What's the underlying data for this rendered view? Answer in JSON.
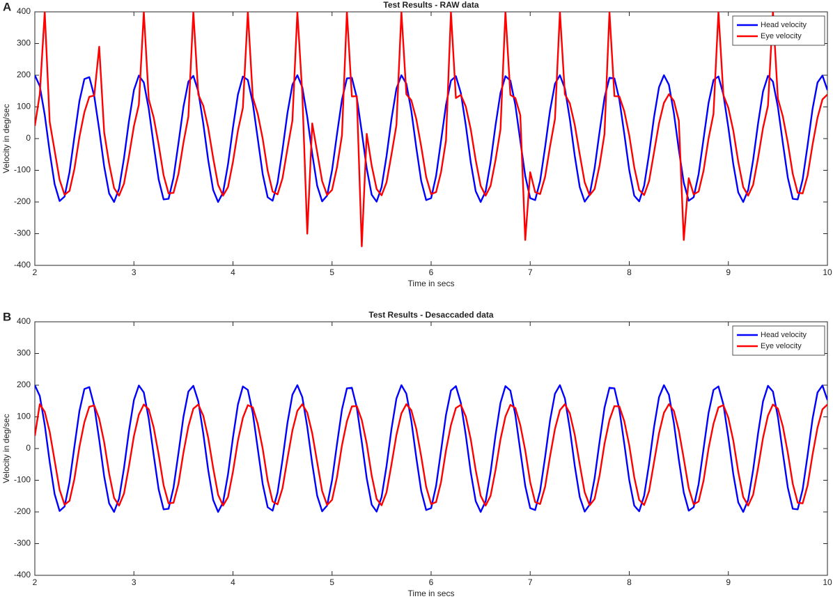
{
  "chart_data": [
    {
      "type": "line",
      "panel_label": "A",
      "title": "Test Results - RAW data",
      "xlabel": "Time in secs",
      "ylabel": "Velocity in deg/sec",
      "xlim": [
        2,
        10
      ],
      "ylim": [
        -400,
        400
      ],
      "xticks": [
        2,
        3,
        4,
        5,
        6,
        7,
        8,
        9,
        10
      ],
      "yticks": [
        -400,
        -300,
        -200,
        -100,
        0,
        100,
        200,
        300,
        400
      ],
      "legend": "upper right",
      "x": [
        2,
        2.05,
        2.1,
        2.15,
        2.2,
        2.25,
        2.3,
        2.35,
        2.4,
        2.45,
        2.5,
        2.55,
        2.6,
        2.65,
        2.7,
        2.75,
        2.8,
        2.85,
        2.9,
        2.95,
        3,
        3.05,
        3.1,
        3.15,
        3.2,
        3.25,
        3.3,
        3.35,
        3.4,
        3.45,
        3.5,
        3.55,
        3.6,
        3.65,
        3.7,
        3.75,
        3.8,
        3.85,
        3.9,
        3.95,
        4,
        4.05,
        4.1,
        4.15,
        4.2,
        4.25,
        4.3,
        4.35,
        4.4,
        4.45,
        4.5,
        4.55,
        4.6,
        4.65,
        4.7,
        4.75,
        4.8,
        4.85,
        4.9,
        4.95,
        5,
        5.05,
        5.1,
        5.15,
        5.2,
        5.25,
        5.3,
        5.35,
        5.4,
        5.45,
        5.5,
        5.55,
        5.6,
        5.65,
        5.7,
        5.75,
        5.8,
        5.85,
        5.9,
        5.95,
        6,
        6.05,
        6.1,
        6.15,
        6.2,
        6.25,
        6.3,
        6.35,
        6.4,
        6.45,
        6.5,
        6.55,
        6.6,
        6.65,
        6.7,
        6.75,
        6.8,
        6.85,
        6.9,
        6.95,
        7,
        7.05,
        7.1,
        7.15,
        7.2,
        7.25,
        7.3,
        7.35,
        7.4,
        7.45,
        7.5,
        7.55,
        7.6,
        7.65,
        7.7,
        7.75,
        7.8,
        7.85,
        7.9,
        7.95,
        8,
        8.05,
        8.1,
        8.15,
        8.2,
        8.25,
        8.3,
        8.35,
        8.4,
        8.45,
        8.5,
        8.55,
        8.6,
        8.65,
        8.7,
        8.75,
        8.8,
        8.85,
        8.9,
        8.95,
        9,
        9.05,
        9.1,
        9.15,
        9.2,
        9.25,
        9.3,
        9.35,
        9.4,
        9.45,
        9.5,
        9.55,
        9.6,
        9.65,
        9.7,
        9.75,
        9.8,
        9.85,
        9.9,
        9.95,
        10
      ],
      "series": [
        {
          "name": "Head velocity",
          "color": "#0000ff",
          "values": [
            200,
            166,
            75,
            -42,
            -144,
            -197,
            -183,
            -106,
            7,
            118,
            188,
            194,
            134,
            28,
            -88,
            -173,
            -200,
            -158,
            -62,
            55,
            153,
            199,
            177,
            94,
            -21,
            -129,
            -192,
            -190,
            -123,
            -14,
            100,
            180,
            198,
            149,
            48,
            -68,
            -162,
            -200,
            -170,
            -81,
            35,
            139,
            196,
            185,
            112,
            0,
            -112,
            -185,
            -196,
            -139,
            -35,
            81,
            170,
            200,
            162,
            68,
            -48,
            -149,
            -198,
            -180,
            -100,
            14,
            123,
            190,
            192,
            129,
            21,
            -94,
            -177,
            -199,
            -153,
            -55,
            62,
            158,
            200,
            173,
            88,
            -28,
            -134,
            -194,
            -188,
            -118,
            -7,
            106,
            183,
            197,
            144,
            42,
            -75,
            -166,
            -200,
            -166,
            -75,
            42,
            144,
            197,
            183,
            106,
            -7,
            -118,
            -188,
            -194,
            -134,
            -28,
            88,
            173,
            200,
            158,
            62,
            -55,
            -153,
            -199,
            -177,
            -94,
            21,
            129,
            192,
            190,
            123,
            14,
            -100,
            -180,
            -198,
            -149,
            -48,
            68,
            162,
            200,
            170,
            81,
            -35,
            -139,
            -196,
            -185,
            -112,
            0,
            112,
            185,
            196,
            139,
            35,
            -81,
            -170,
            -200,
            -162,
            -68,
            48,
            149,
            198,
            180,
            100,
            -14,
            -123,
            -190,
            -192,
            -129,
            -21,
            94,
            177,
            199,
            153
          ]
        },
        {
          "name": "Eye velocity",
          "color": "#ff0000",
          "values": [
            40,
            140,
            400,
            53,
            -38,
            -130,
            -177,
            -165,
            -95,
            5,
            83,
            132,
            136,
            290,
            20,
            -79,
            -156,
            -180,
            -142,
            -56,
            39,
            107,
            400,
            124,
            66,
            -19,
            -116,
            -173,
            -171,
            -111,
            -13,
            70,
            400,
            139,
            104,
            34,
            -61,
            -146,
            -180,
            -153,
            -73,
            25,
            97,
            400,
            130,
            78,
            0,
            -101,
            -167,
            -176,
            -125,
            -32,
            57,
            400,
            140,
            -300,
            48,
            -43,
            -134,
            -178,
            -162,
            -90,
            10,
            400,
            133,
            134,
            -340,
            15,
            -85,
            -159,
            -179,
            -138,
            -50,
            43,
            400,
            140,
            121,
            62,
            -25,
            -121,
            -175,
            -169,
            -106,
            -6,
            400,
            128,
            138,
            101,
            29,
            -68,
            -149,
            -180,
            -149,
            -68,
            29,
            400,
            138,
            128,
            74,
            -320,
            -106,
            -169,
            -175,
            -121,
            -25,
            62,
            400,
            140,
            111,
            43,
            -50,
            -138,
            -179,
            -159,
            -85,
            15,
            400,
            134,
            133,
            86,
            10,
            -90,
            -162,
            -178,
            -134,
            -43,
            48,
            113,
            140,
            119,
            57,
            -320,
            -125,
            -176,
            -167,
            -101,
            0,
            78,
            400,
            137,
            97,
            25,
            -73,
            -153,
            -180,
            -146,
            -61,
            34,
            104,
            400,
            126,
            70,
            -13,
            -111,
            -171,
            -173,
            -116,
            -19,
            66,
            124,
            139
          ]
        }
      ]
    },
    {
      "type": "line",
      "panel_label": "B",
      "title": "Test Results - Desaccaded data",
      "xlabel": "Time in secs",
      "ylabel": "Velocity in deg/sec",
      "xlim": [
        2,
        10
      ],
      "ylim": [
        -400,
        400
      ],
      "xticks": [
        2,
        3,
        4,
        5,
        6,
        7,
        8,
        9,
        10
      ],
      "yticks": [
        -400,
        -300,
        -200,
        -100,
        0,
        100,
        200,
        300,
        400
      ],
      "legend": "upper right",
      "x": [
        2,
        2.05,
        2.1,
        2.15,
        2.2,
        2.25,
        2.3,
        2.35,
        2.4,
        2.45,
        2.5,
        2.55,
        2.6,
        2.65,
        2.7,
        2.75,
        2.8,
        2.85,
        2.9,
        2.95,
        3,
        3.05,
        3.1,
        3.15,
        3.2,
        3.25,
        3.3,
        3.35,
        3.4,
        3.45,
        3.5,
        3.55,
        3.6,
        3.65,
        3.7,
        3.75,
        3.8,
        3.85,
        3.9,
        3.95,
        4,
        4.05,
        4.1,
        4.15,
        4.2,
        4.25,
        4.3,
        4.35,
        4.4,
        4.45,
        4.5,
        4.55,
        4.6,
        4.65,
        4.7,
        4.75,
        4.8,
        4.85,
        4.9,
        4.95,
        5,
        5.05,
        5.1,
        5.15,
        5.2,
        5.25,
        5.3,
        5.35,
        5.4,
        5.45,
        5.5,
        5.55,
        5.6,
        5.65,
        5.7,
        5.75,
        5.8,
        5.85,
        5.9,
        5.95,
        6,
        6.05,
        6.1,
        6.15,
        6.2,
        6.25,
        6.3,
        6.35,
        6.4,
        6.45,
        6.5,
        6.55,
        6.6,
        6.65,
        6.7,
        6.75,
        6.8,
        6.85,
        6.9,
        6.95,
        7,
        7.05,
        7.1,
        7.15,
        7.2,
        7.25,
        7.3,
        7.35,
        7.4,
        7.45,
        7.5,
        7.55,
        7.6,
        7.65,
        7.7,
        7.75,
        7.8,
        7.85,
        7.9,
        7.95,
        8,
        8.05,
        8.1,
        8.15,
        8.2,
        8.25,
        8.3,
        8.35,
        8.4,
        8.45,
        8.5,
        8.55,
        8.6,
        8.65,
        8.7,
        8.75,
        8.8,
        8.85,
        8.9,
        8.95,
        9,
        9.05,
        9.1,
        9.15,
        9.2,
        9.25,
        9.3,
        9.35,
        9.4,
        9.45,
        9.5,
        9.55,
        9.6,
        9.65,
        9.7,
        9.75,
        9.8,
        9.85,
        9.9,
        9.95,
        10
      ],
      "series": [
        {
          "name": "Head velocity",
          "color": "#0000ff",
          "values": [
            200,
            166,
            75,
            -42,
            -144,
            -197,
            -183,
            -106,
            7,
            118,
            188,
            194,
            134,
            28,
            -88,
            -173,
            -200,
            -158,
            -62,
            55,
            153,
            199,
            177,
            94,
            -21,
            -129,
            -192,
            -190,
            -123,
            -14,
            100,
            180,
            198,
            149,
            48,
            -68,
            -162,
            -200,
            -170,
            -81,
            35,
            139,
            196,
            185,
            112,
            0,
            -112,
            -185,
            -196,
            -139,
            -35,
            81,
            170,
            200,
            162,
            68,
            -48,
            -149,
            -198,
            -180,
            -100,
            14,
            123,
            190,
            192,
            129,
            21,
            -94,
            -177,
            -199,
            -153,
            -55,
            62,
            158,
            200,
            173,
            88,
            -28,
            -134,
            -194,
            -188,
            -118,
            -7,
            106,
            183,
            197,
            144,
            42,
            -75,
            -166,
            -200,
            -166,
            -75,
            42,
            144,
            197,
            183,
            106,
            -7,
            -118,
            -188,
            -194,
            -134,
            -28,
            88,
            173,
            200,
            158,
            62,
            -55,
            -153,
            -199,
            -177,
            -94,
            21,
            129,
            192,
            190,
            123,
            14,
            -100,
            -180,
            -198,
            -149,
            -48,
            68,
            162,
            200,
            170,
            81,
            -35,
            -139,
            -196,
            -185,
            -112,
            0,
            112,
            185,
            196,
            139,
            35,
            -81,
            -170,
            -200,
            -162,
            -68,
            48,
            149,
            198,
            180,
            100,
            -14,
            -123,
            -190,
            -192,
            -129,
            -21,
            94,
            177,
            199,
            153
          ]
        },
        {
          "name": "Eye velocity",
          "color": "#ff0000",
          "values": [
            40,
            140,
            116,
            53,
            -38,
            -130,
            -177,
            -165,
            -95,
            5,
            83,
            132,
            136,
            94,
            20,
            -79,
            -156,
            -180,
            -142,
            -56,
            39,
            107,
            139,
            124,
            66,
            -19,
            -116,
            -173,
            -171,
            -111,
            -13,
            70,
            126,
            139,
            104,
            34,
            -61,
            -146,
            -180,
            -153,
            -73,
            25,
            97,
            137,
            130,
            78,
            0,
            -101,
            -167,
            -176,
            -125,
            -32,
            57,
            119,
            140,
            113,
            48,
            -43,
            -134,
            -178,
            -162,
            -90,
            10,
            86,
            133,
            134,
            90,
            15,
            -85,
            -159,
            -179,
            -138,
            -50,
            43,
            111,
            140,
            121,
            62,
            -25,
            -121,
            -175,
            -169,
            -106,
            -6,
            74,
            128,
            138,
            101,
            29,
            -68,
            -149,
            -180,
            -149,
            -68,
            29,
            101,
            138,
            128,
            74,
            -6,
            -106,
            -169,
            -175,
            -121,
            -25,
            62,
            121,
            140,
            111,
            43,
            -50,
            -138,
            -179,
            -159,
            -85,
            15,
            90,
            134,
            133,
            86,
            10,
            -90,
            -162,
            -178,
            -134,
            -43,
            48,
            113,
            140,
            119,
            57,
            -32,
            -125,
            -176,
            -167,
            -101,
            0,
            78,
            130,
            137,
            97,
            25,
            -73,
            -153,
            -180,
            -146,
            -61,
            34,
            104,
            139,
            126,
            70,
            -13,
            -111,
            -171,
            -173,
            -116,
            -19,
            66,
            124,
            139
          ]
        }
      ]
    }
  ]
}
